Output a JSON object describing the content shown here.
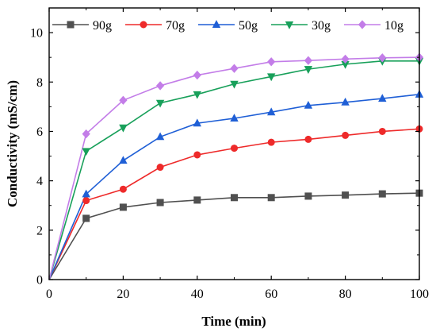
{
  "chart_data": {
    "type": "line",
    "xlabel": "Time (min)",
    "ylabel": "Conductivity (mS/cm)",
    "xlim": [
      0,
      100
    ],
    "ylim": [
      0,
      11
    ],
    "x_ticks": [
      0,
      20,
      40,
      60,
      80,
      100
    ],
    "y_ticks": [
      0,
      2,
      4,
      6,
      8,
      10
    ],
    "grid": false,
    "legend_position": "top",
    "x": [
      0,
      10,
      20,
      30,
      40,
      50,
      60,
      70,
      80,
      90,
      100
    ],
    "series": [
      {
        "name": "90g",
        "color": "#505050",
        "marker": "square",
        "values": [
          0,
          2.48,
          2.93,
          3.12,
          3.22,
          3.32,
          3.32,
          3.38,
          3.42,
          3.47,
          3.5
        ]
      },
      {
        "name": "70g",
        "color": "#ee2a2a",
        "marker": "circle",
        "values": [
          0,
          3.2,
          3.66,
          4.55,
          5.05,
          5.32,
          5.56,
          5.68,
          5.84,
          6.0,
          6.1
        ]
      },
      {
        "name": "50g",
        "color": "#1f5fd6",
        "marker": "triangle-up",
        "values": [
          0,
          3.46,
          4.82,
          5.78,
          6.33,
          6.53,
          6.78,
          7.05,
          7.18,
          7.33,
          7.5
        ]
      },
      {
        "name": "30g",
        "color": "#18a05a",
        "marker": "triangle-down",
        "values": [
          0,
          5.2,
          6.15,
          7.15,
          7.5,
          7.92,
          8.22,
          8.52,
          8.72,
          8.85,
          8.85
        ]
      },
      {
        "name": "10g",
        "color": "#c37de8",
        "marker": "diamond",
        "values": [
          0,
          5.9,
          7.26,
          7.85,
          8.28,
          8.55,
          8.82,
          8.87,
          8.93,
          8.98,
          9.0
        ]
      }
    ]
  }
}
